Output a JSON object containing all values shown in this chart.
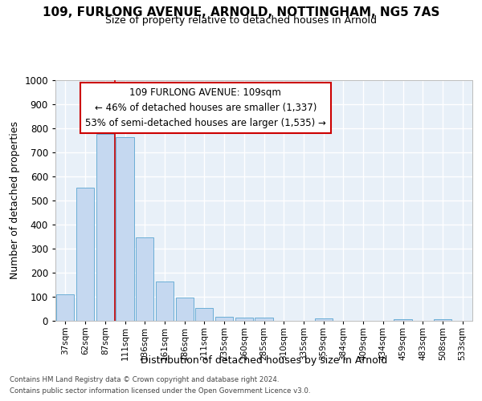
{
  "title1": "109, FURLONG AVENUE, ARNOLD, NOTTINGHAM, NG5 7AS",
  "title2": "Size of property relative to detached houses in Arnold",
  "xlabel": "Distribution of detached houses by size in Arnold",
  "ylabel": "Number of detached properties",
  "bar_labels": [
    "37sqm",
    "62sqm",
    "87sqm",
    "111sqm",
    "136sqm",
    "161sqm",
    "186sqm",
    "211sqm",
    "235sqm",
    "260sqm",
    "285sqm",
    "310sqm",
    "335sqm",
    "359sqm",
    "384sqm",
    "409sqm",
    "434sqm",
    "459sqm",
    "483sqm",
    "508sqm",
    "533sqm"
  ],
  "bar_values": [
    110,
    555,
    778,
    762,
    347,
    165,
    97,
    53,
    18,
    14,
    14,
    0,
    0,
    10,
    0,
    0,
    0,
    8,
    0,
    8,
    0
  ],
  "bar_color": "#c5d8f0",
  "bar_edge_color": "#6baed6",
  "vline_color": "#cc0000",
  "vline_x": 2.5,
  "annotation_line1": "109 FURLONG AVENUE: 109sqm",
  "annotation_line2": "← 46% of detached houses are smaller (1,337)",
  "annotation_line3": "53% of semi-detached houses are larger (1,535) →",
  "annotation_box_facecolor": "#ffffff",
  "annotation_box_edgecolor": "#cc0000",
  "ylim": [
    0,
    1000
  ],
  "yticks": [
    0,
    100,
    200,
    300,
    400,
    500,
    600,
    700,
    800,
    900,
    1000
  ],
  "plot_bg": "#e8f0f8",
  "fig_bg": "#ffffff",
  "grid_color": "#ffffff",
  "footer1": "Contains HM Land Registry data © Crown copyright and database right 2024.",
  "footer2": "Contains public sector information licensed under the Open Government Licence v3.0."
}
